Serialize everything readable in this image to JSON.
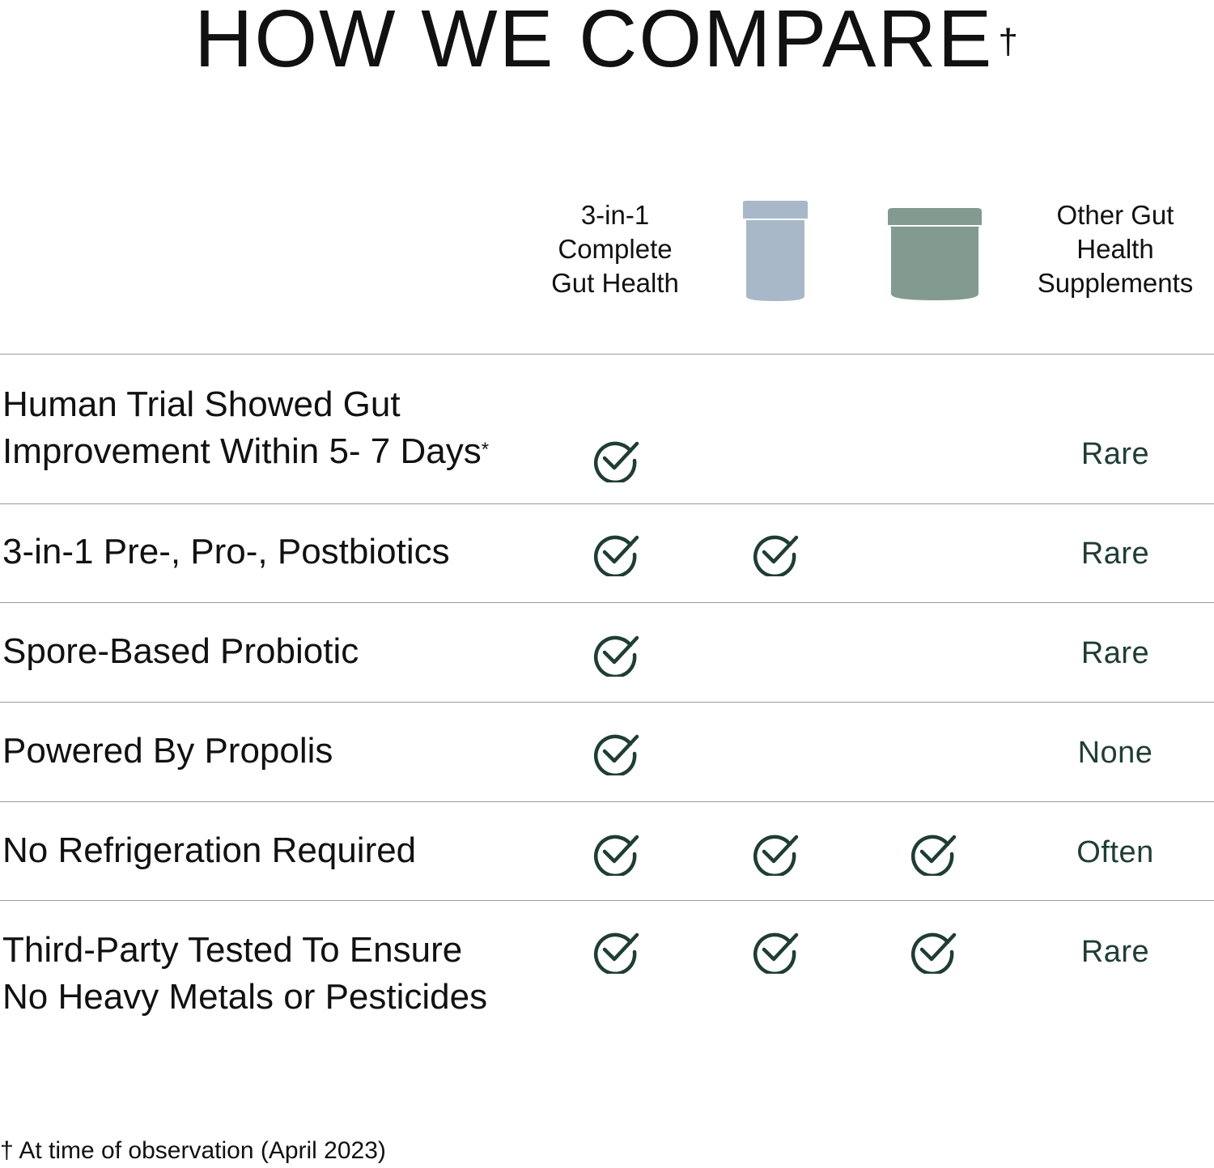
{
  "title": "HOW WE COMPARE",
  "title_mark": "†",
  "columns": {
    "col1_heading": [
      "3-in-1",
      "Complete",
      "Gut Health"
    ],
    "col2_icon": "bottle-icon",
    "col3_icon": "jar-icon",
    "col4_heading": [
      "Other Gut",
      "Health",
      "Supplements"
    ]
  },
  "colors": {
    "check": "#1f3d35",
    "bottle": "#a9b8c8",
    "jar": "#829a8f",
    "rule": "#9b9b9b"
  },
  "rows": [
    {
      "label": [
        "Human Trial Showed Gut",
        "Improvement Within 5- 7 Days"
      ],
      "label_mark": "*",
      "checks": [
        true,
        false,
        false
      ],
      "other": "Rare"
    },
    {
      "label": [
        "3-in-1 Pre-, Pro-, Postbiotics"
      ],
      "checks": [
        true,
        true,
        false
      ],
      "other": "Rare"
    },
    {
      "label": [
        "Spore-Based Probiotic"
      ],
      "checks": [
        true,
        false,
        false
      ],
      "other": "Rare"
    },
    {
      "label": [
        "Powered By Propolis"
      ],
      "checks": [
        true,
        false,
        false
      ],
      "other": "None"
    },
    {
      "label": [
        "No Refrigeration Required"
      ],
      "checks": [
        true,
        true,
        true
      ],
      "other": "Often"
    },
    {
      "label": [
        "Third-Party Tested To Ensure",
        "No Heavy Metals or Pesticides"
      ],
      "checks": [
        true,
        true,
        true
      ],
      "other": "Rare"
    }
  ],
  "footnote": "† At time of observation (April 2023)"
}
